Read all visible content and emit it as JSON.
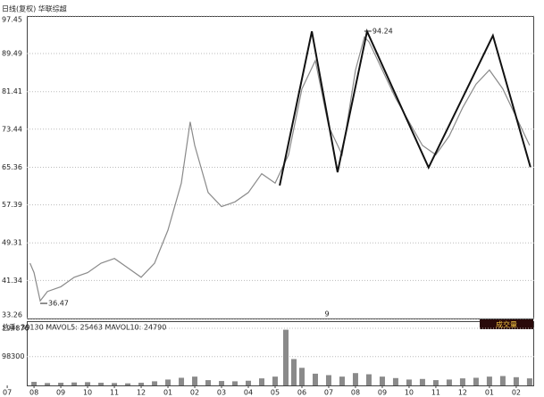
{
  "chart_data": [
    {
      "type": "line",
      "title": "日线(复权) 华联综超",
      "marker": "9",
      "xlim": [
        -0.27,
        19.67
      ],
      "ylim": [
        33.26,
        97.45
      ],
      "yticks": [
        97.45,
        89.49,
        81.41,
        73.44,
        65.36,
        57.39,
        49.31,
        41.34,
        33.26
      ],
      "grid": true,
      "color": "#8a8a8a",
      "x": [
        0.85,
        1.0,
        1.23,
        1.5,
        2.0,
        2.5,
        3.0,
        3.5,
        4.0,
        4.5,
        5.0,
        5.5,
        6.0,
        6.5,
        6.83,
        7.0,
        7.5,
        8.0,
        8.5,
        9.0,
        9.5,
        10.0,
        10.5,
        11.0,
        11.5,
        12.0,
        12.5,
        13.0,
        13.33,
        13.5,
        14.0,
        14.5,
        15.0,
        15.5,
        16.0,
        16.5,
        17.0,
        17.5,
        18.0,
        18.5,
        19.0,
        19.5
      ],
      "values": [
        45,
        43,
        37,
        39,
        40,
        42,
        43,
        45,
        46,
        44,
        42,
        45,
        52,
        62,
        75,
        70,
        60,
        57,
        58,
        60,
        64,
        62,
        68,
        82,
        88,
        74,
        68,
        86,
        93,
        92,
        86,
        80,
        75,
        70,
        68,
        72,
        78,
        83,
        86,
        82,
        76,
        70
      ],
      "zigzag": {
        "color": "#111",
        "x": [
          10.17,
          11.37,
          12.33,
          13.43,
          15.73,
          18.13,
          19.53
        ],
        "values": [
          61.5,
          94.2,
          64.3,
          94.2,
          65.3,
          93.3,
          65.4
        ]
      },
      "annotations": [
        {
          "x": 13.33,
          "value": 94.24
        },
        {
          "x": 1.23,
          "value": 36.47
        }
      ]
    },
    {
      "type": "bar",
      "legend_text": "总手: 39130 MAVOL5: 25463 MAVOL10: 24790",
      "button": "成交量",
      "xlim": [
        -0.27,
        19.67
      ],
      "ylim": [
        0,
        194876
      ],
      "yticks": [
        194876,
        98300
      ],
      "color": "#8a8a8a",
      "xticks": [
        {
          "value": 0,
          "label": "07"
        },
        {
          "value": 1,
          "label": "08"
        },
        {
          "value": 2,
          "label": "09"
        },
        {
          "value": 3,
          "label": "10"
        },
        {
          "value": 4,
          "label": "11"
        },
        {
          "value": 5,
          "label": "12"
        },
        {
          "value": 6,
          "label": "01"
        },
        {
          "value": 7,
          "label": "02"
        },
        {
          "value": 8,
          "label": "03"
        },
        {
          "value": 9,
          "label": "04"
        },
        {
          "value": 10,
          "label": "05"
        },
        {
          "value": 11,
          "label": "06"
        },
        {
          "value": 12,
          "label": "07"
        },
        {
          "value": 13,
          "label": "08"
        },
        {
          "value": 14,
          "label": "09"
        },
        {
          "value": 15,
          "label": "10"
        },
        {
          "value": 16,
          "label": "11"
        },
        {
          "value": 17,
          "label": "12"
        },
        {
          "value": 18,
          "label": "01"
        },
        {
          "value": 19,
          "label": "02"
        }
      ],
      "x": [
        1.0,
        1.5,
        2.0,
        2.5,
        3.0,
        3.5,
        4.0,
        4.5,
        5.0,
        5.5,
        6.0,
        6.5,
        7.0,
        7.5,
        8.0,
        8.5,
        9.0,
        9.5,
        10.0,
        10.4,
        10.7,
        11.0,
        11.5,
        12.0,
        12.5,
        13.0,
        13.5,
        14.0,
        14.5,
        15.0,
        15.5,
        16.0,
        16.5,
        17.0,
        17.5,
        18.0,
        18.5,
        19.0,
        19.5
      ],
      "values": [
        12000,
        8000,
        9000,
        10000,
        11000,
        9000,
        8000,
        7000,
        9000,
        14000,
        20000,
        26000,
        30000,
        18000,
        15000,
        14000,
        16000,
        24000,
        30000,
        190000,
        90000,
        60000,
        40000,
        35000,
        30000,
        42000,
        38000,
        30000,
        25000,
        20000,
        22000,
        18000,
        20000,
        24000,
        26000,
        30000,
        32000,
        28000,
        24000
      ]
    }
  ]
}
